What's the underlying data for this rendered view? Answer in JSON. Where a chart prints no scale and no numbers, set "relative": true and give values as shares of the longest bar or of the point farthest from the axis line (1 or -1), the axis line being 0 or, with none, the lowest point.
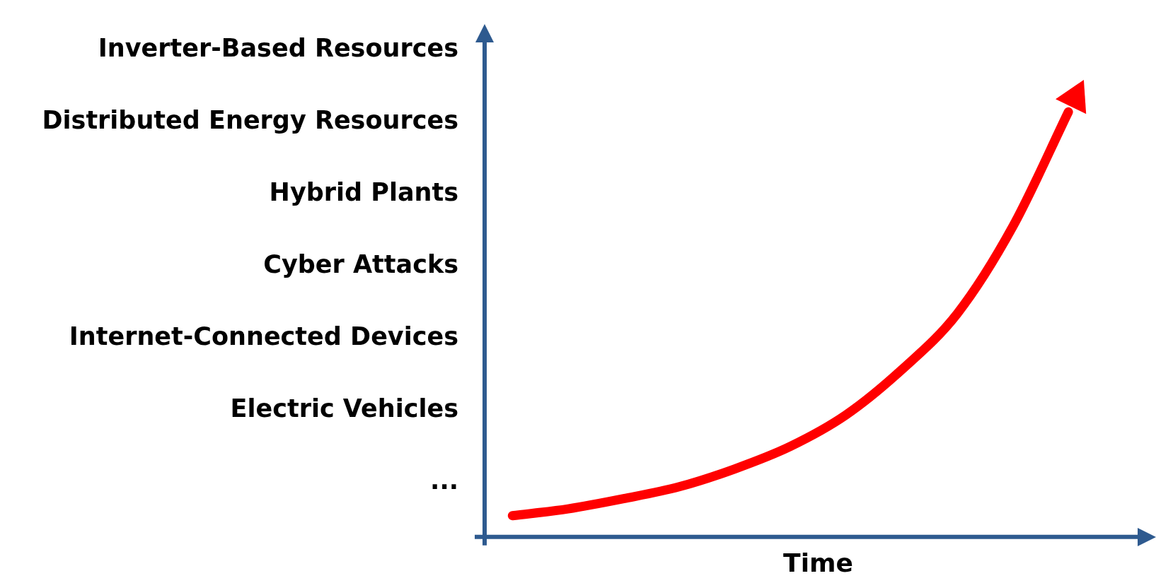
{
  "chart_data": {
    "type": "line",
    "relative": true,
    "xlabel": "Time",
    "categories": [
      null,
      null,
      null,
      null,
      null,
      null,
      null,
      null,
      null,
      null,
      null,
      null
    ],
    "series": [
      {
        "color": "#ff0000",
        "values": [
          0.05,
          0.066,
          0.09,
          0.118,
          0.16,
          0.213,
          0.287,
          0.393,
          0.525,
          0.73,
          1,
          null
        ]
      }
    ],
    "annotations": [
      "Inverter-Based Resources",
      "Distributed Energy Resources",
      "Hybrid Plants",
      "Cyber Attacks",
      "Internet-Connected Devices",
      "Electric Vehicles",
      "..."
    ],
    "legend": false,
    "grid": false,
    "marker": "none",
    "line_style": "solid"
  }
}
